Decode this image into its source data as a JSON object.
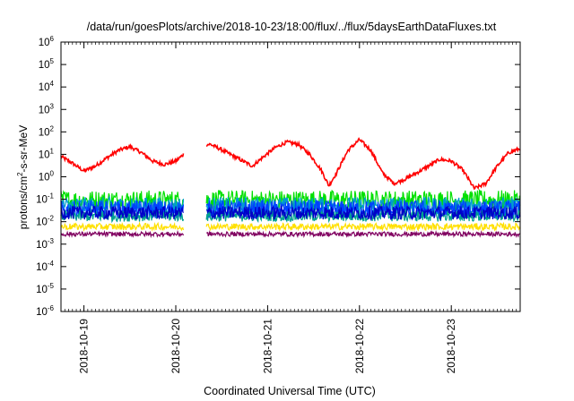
{
  "chart_data": {
    "type": "line",
    "title": "/data/run/goesPlots/archive/2018-10-23/18:00/flux/../flux/5daysEarthDataFluxes.txt",
    "xlabel": "Coordinated Universal Time (UTC)",
    "ylabel_parts": [
      "protons/cm",
      "2",
      "-s-sr-MeV"
    ],
    "y_scale": "log",
    "ylim": [
      1e-06,
      1000000.0
    ],
    "y_ticks": [
      {
        "value": 1e-06,
        "base": "10",
        "exp": "-6"
      },
      {
        "value": 1e-05,
        "base": "10",
        "exp": "-5"
      },
      {
        "value": 0.0001,
        "base": "10",
        "exp": "-4"
      },
      {
        "value": 0.001,
        "base": "10",
        "exp": "-3"
      },
      {
        "value": 0.01,
        "base": "10",
        "exp": "-2"
      },
      {
        "value": 0.1,
        "base": "10",
        "exp": "-1"
      },
      {
        "value": 1,
        "base": "10",
        "exp": "0"
      },
      {
        "value": 10,
        "base": "10",
        "exp": "1"
      },
      {
        "value": 100,
        "base": "10",
        "exp": "2"
      },
      {
        "value": 1000,
        "base": "10",
        "exp": "3"
      },
      {
        "value": 10000,
        "base": "10",
        "exp": "4"
      },
      {
        "value": 100000,
        "base": "10",
        "exp": "5"
      },
      {
        "value": 1000000,
        "base": "10",
        "exp": "6"
      }
    ],
    "xlim": [
      "2018-10-18T18:00",
      "2018-10-23T18:00"
    ],
    "x_ticks": [
      "2018-10-19",
      "2018-10-20",
      "2018-10-21",
      "2018-10-22",
      "2018-10-23"
    ],
    "grid": false,
    "legend": "none",
    "data_gap": [
      "2018-10-20T02:00",
      "2018-10-20T08:00"
    ],
    "series": [
      {
        "color": "#ff0000",
        "noise": 0.08,
        "points": [
          [
            "2018-10-18T18:00",
            8
          ],
          [
            "2018-10-18T21:00",
            4
          ],
          [
            "2018-10-19T00:00",
            1.8
          ],
          [
            "2018-10-19T03:00",
            3
          ],
          [
            "2018-10-19T06:00",
            7
          ],
          [
            "2018-10-19T09:00",
            15
          ],
          [
            "2018-10-19T12:00",
            22
          ],
          [
            "2018-10-19T15:00",
            12
          ],
          [
            "2018-10-19T18:00",
            5
          ],
          [
            "2018-10-19T21:00",
            3.5
          ],
          [
            "2018-10-20T00:00",
            5
          ],
          [
            "2018-10-20T03:00",
            14
          ],
          [
            "2018-10-20T06:00",
            25
          ],
          [
            "2018-10-20T09:00",
            28
          ],
          [
            "2018-10-20T12:00",
            16
          ],
          [
            "2018-10-20T20:00",
            3
          ],
          [
            "2018-10-20T23:00",
            8
          ],
          [
            "2018-10-21T02:00",
            20
          ],
          [
            "2018-10-21T05:00",
            35
          ],
          [
            "2018-10-21T08:00",
            28
          ],
          [
            "2018-10-21T11:00",
            10
          ],
          [
            "2018-10-21T14:00",
            2
          ],
          [
            "2018-10-21T16:00",
            0.4
          ],
          [
            "2018-10-21T18:00",
            1.5
          ],
          [
            "2018-10-21T21:00",
            15
          ],
          [
            "2018-10-22T00:00",
            45
          ],
          [
            "2018-10-22T03:00",
            15
          ],
          [
            "2018-10-22T06:00",
            1.5
          ],
          [
            "2018-10-22T09:00",
            0.5
          ],
          [
            "2018-10-22T12:00",
            0.8
          ],
          [
            "2018-10-22T15:00",
            1.5
          ],
          [
            "2018-10-22T18:00",
            3
          ],
          [
            "2018-10-22T21:00",
            6
          ],
          [
            "2018-10-23T00:00",
            5
          ],
          [
            "2018-10-23T03:00",
            2
          ],
          [
            "2018-10-23T06:00",
            0.3
          ],
          [
            "2018-10-23T09:00",
            0.5
          ],
          [
            "2018-10-23T12:00",
            3
          ],
          [
            "2018-10-23T15:00",
            12
          ],
          [
            "2018-10-23T18:00",
            18
          ]
        ]
      },
      {
        "color": "#00e000",
        "noise": 0.45,
        "points": [
          [
            "2018-10-18T18:00",
            0.09
          ],
          [
            "2018-10-23T18:00",
            0.09
          ]
        ]
      },
      {
        "color": "#009bd0",
        "noise": 0.4,
        "points": [
          [
            "2018-10-18T18:00",
            0.05
          ],
          [
            "2018-10-23T18:00",
            0.05
          ]
        ]
      },
      {
        "color": "#0040ff",
        "noise": 0.4,
        "points": [
          [
            "2018-10-18T18:00",
            0.035
          ],
          [
            "2018-10-23T18:00",
            0.035
          ]
        ]
      },
      {
        "color": "#00a090",
        "noise": 0.25,
        "points": [
          [
            "2018-10-18T18:00",
            0.018
          ],
          [
            "2018-10-23T18:00",
            0.018
          ]
        ]
      },
      {
        "color": "#0000c8",
        "noise": 0.3,
        "points": [
          [
            "2018-10-18T18:00",
            0.025
          ],
          [
            "2018-10-23T18:00",
            0.025
          ]
        ]
      },
      {
        "color": "#ffe000",
        "noise": 0.15,
        "points": [
          [
            "2018-10-18T18:00",
            0.006
          ],
          [
            "2018-10-23T18:00",
            0.006
          ]
        ]
      },
      {
        "color": "#800060",
        "noise": 0.1,
        "points": [
          [
            "2018-10-18T18:00",
            0.0028
          ],
          [
            "2018-10-23T18:00",
            0.0028
          ]
        ]
      }
    ]
  }
}
